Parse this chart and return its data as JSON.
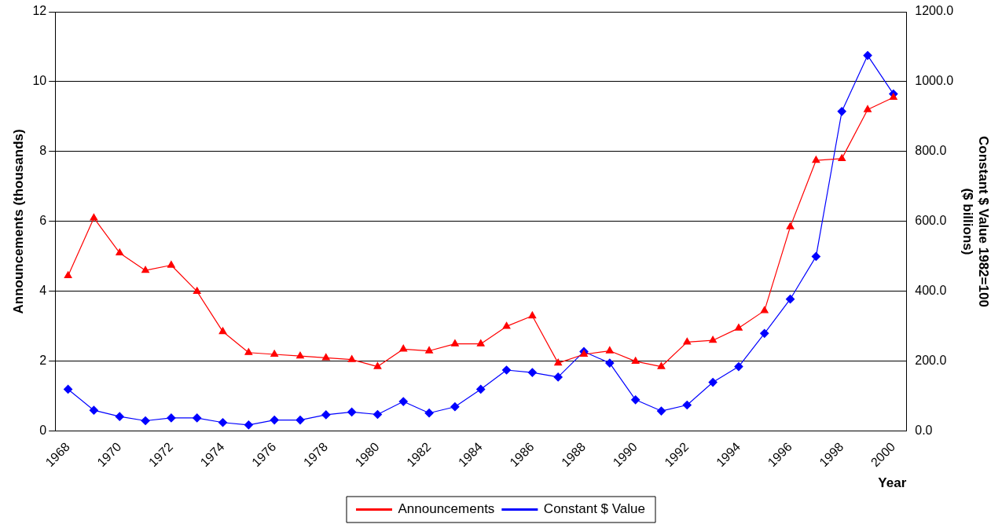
{
  "chart_data": {
    "type": "line",
    "xlabel": "Year",
    "ylabel": "Announcements (thousands)",
    "y2label": "Constant $ Value 1982=100\n($ billions)",
    "categories": [
      "1968",
      null,
      "1970",
      null,
      "1972",
      null,
      "1974",
      null,
      "1976",
      null,
      "1978",
      null,
      "1980",
      null,
      "1982",
      null,
      "1984",
      null,
      "1986",
      null,
      "1988",
      null,
      "1990",
      null,
      "1992",
      null,
      "1994",
      null,
      "1996",
      null,
      "1998",
      null,
      "2000"
    ],
    "series": [
      {
        "name": "Announcements",
        "color": "#ff0000",
        "marker": "triangle",
        "values": [
          4.45,
          6.1,
          5.1,
          4.6,
          4.75,
          4.0,
          2.85,
          2.25,
          2.2,
          2.15,
          2.1,
          2.05,
          1.85,
          2.35,
          2.3,
          2.5,
          2.5,
          3.0,
          3.3,
          1.95,
          2.2,
          2.3,
          2.0,
          1.85,
          2.55,
          2.6,
          2.95,
          3.45,
          5.85,
          7.75,
          7.8,
          9.2,
          9.55
        ]
      },
      {
        "name": "Constant $ Value",
        "color": "#0000ff",
        "marker": "diamond",
        "axis": "y2",
        "values": [
          120,
          60,
          42,
          30,
          38,
          38,
          25,
          18,
          32,
          32,
          47,
          55,
          48,
          85,
          52,
          70,
          120,
          175,
          168,
          155,
          228,
          195,
          90,
          58,
          75,
          140,
          185,
          280,
          378,
          500,
          915,
          1075,
          965
        ]
      }
    ],
    "ylim": [
      0,
      12
    ],
    "yticks": [
      0,
      2,
      4,
      6,
      8,
      10,
      12
    ],
    "y2lim": [
      0,
      1200
    ],
    "y2ticks": [
      {
        "value": 0,
        "label": "0.0"
      },
      {
        "value": 200,
        "label": "200.0"
      },
      {
        "value": 400,
        "label": "400.0"
      },
      {
        "value": 600,
        "label": "600.0"
      },
      {
        "value": 800,
        "label": "800.0"
      },
      {
        "value": 1000,
        "label": "1000.0"
      },
      {
        "value": 1200,
        "label": "1200.0"
      }
    ],
    "grid": "y",
    "legend": "bottom"
  }
}
